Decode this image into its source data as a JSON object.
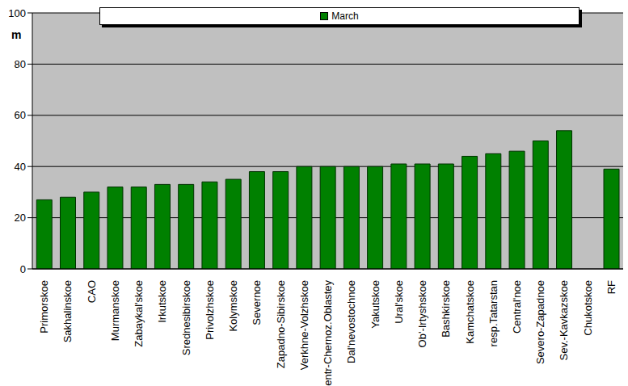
{
  "chart_data": {
    "type": "bar",
    "y_label": "m",
    "categories": [
      "Primorskoe",
      "Sakhalinskoe",
      "CAO",
      "Murmanskoe",
      "Zabaykal'skoe",
      "Irkutskoe",
      "Srednesibirskoe",
      "Privolzhskoe",
      "Kolymskoe",
      "Severnoe",
      "Zapadno-Sibirskoe",
      "Verkhne-Volzhskoe",
      "Centr-Chernoz.Oblastey",
      "Dal'nevostochnoe",
      "Yakutskoe",
      "Ural'skoe",
      "Ob'-Irtyshskoe",
      "Bashkirskoe",
      "Kamchatskoe",
      "resp.Tatarstan",
      "Central'noe",
      "Severo-Zapadnoe",
      "Sev.-Kavkazskoe",
      "Chukotskoe",
      "RF"
    ],
    "series": [
      {
        "name": "March",
        "color": "#008000",
        "values": [
          27,
          28,
          30,
          32,
          32,
          33,
          33,
          34,
          35,
          38,
          38,
          40,
          40,
          40,
          40,
          41,
          41,
          41,
          44,
          45,
          46,
          50,
          54,
          null,
          39
        ]
      }
    ],
    "ylim": [
      0,
      100
    ],
    "yticks": [
      0,
      20,
      40,
      60,
      80,
      100
    ],
    "grid": true,
    "legend": "top"
  }
}
